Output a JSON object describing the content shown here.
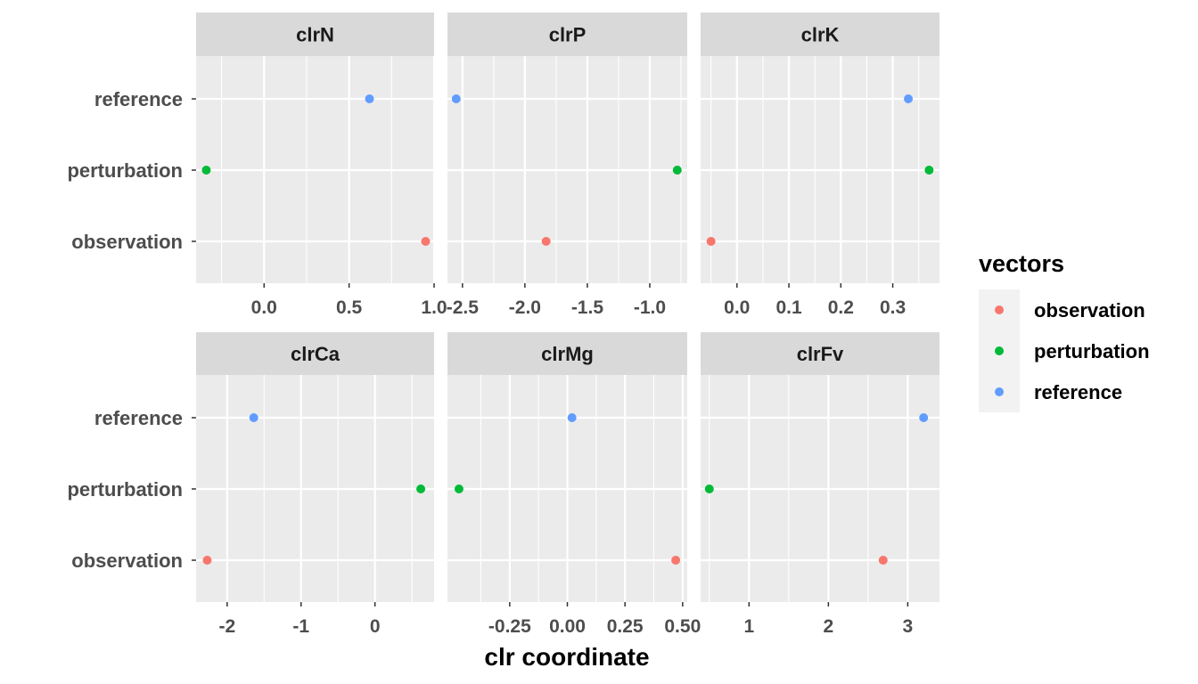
{
  "chart_data": {
    "type": "scatter",
    "xlabel": "clr coordinate",
    "legend": {
      "title": "vectors",
      "position": "right",
      "entries": [
        "observation",
        "perturbation",
        "reference"
      ]
    },
    "colors": {
      "observation": "#F8766D",
      "perturbation": "#00BA38",
      "reference": "#619CFF",
      "panel_bg": "#EBEBEB",
      "strip_bg": "#D9D9D9",
      "grid": "#FFFFFF"
    },
    "categories": [
      "observation",
      "perturbation",
      "reference"
    ],
    "grid": true,
    "facets": [
      {
        "title": "clrN",
        "xlim": [
          -0.4,
          1.0
        ],
        "ticks": [
          {
            "v": 0.0,
            "l": "0.0"
          },
          {
            "v": 0.5,
            "l": "0.5"
          },
          {
            "v": 1.0,
            "l": "1.0"
          }
        ],
        "points": {
          "observation": 0.95,
          "perturbation": -0.34,
          "reference": 0.62
        }
      },
      {
        "title": "clrP",
        "xlim": [
          -2.62,
          -0.7
        ],
        "ticks": [
          {
            "v": -2.5,
            "l": "-2.5"
          },
          {
            "v": -2.0,
            "l": "-2.0"
          },
          {
            "v": -1.5,
            "l": "-1.5"
          },
          {
            "v": -1.0,
            "l": "-1.0"
          }
        ],
        "points": {
          "observation": -1.83,
          "perturbation": -0.78,
          "reference": -2.55
        }
      },
      {
        "title": "clrK",
        "xlim": [
          -0.07,
          0.39
        ],
        "ticks": [
          {
            "v": 0.0,
            "l": "0.0"
          },
          {
            "v": 0.1,
            "l": "0.1"
          },
          {
            "v": 0.2,
            "l": "0.2"
          },
          {
            "v": 0.3,
            "l": "0.3"
          }
        ],
        "points": {
          "observation": -0.05,
          "perturbation": 0.37,
          "reference": 0.33
        }
      },
      {
        "title": "clrCa",
        "xlim": [
          -2.42,
          0.8
        ],
        "ticks": [
          {
            "v": -2,
            "l": "-2"
          },
          {
            "v": -1,
            "l": "-1"
          },
          {
            "v": 0,
            "l": "0"
          }
        ],
        "points": {
          "observation": -2.27,
          "perturbation": 0.62,
          "reference": -1.64
        }
      },
      {
        "title": "clrMg",
        "xlim": [
          -0.52,
          0.52
        ],
        "ticks": [
          {
            "v": -0.25,
            "l": "-0.25"
          },
          {
            "v": 0.0,
            "l": "0.00"
          },
          {
            "v": 0.25,
            "l": "0.25"
          },
          {
            "v": 0.5,
            "l": "0.50"
          }
        ],
        "points": {
          "observation": 0.47,
          "perturbation": -0.47,
          "reference": 0.02
        }
      },
      {
        "title": "clrFv",
        "xlim": [
          0.39,
          3.4
        ],
        "ticks": [
          {
            "v": 1,
            "l": "1"
          },
          {
            "v": 2,
            "l": "2"
          },
          {
            "v": 3,
            "l": "3"
          }
        ],
        "points": {
          "observation": 2.69,
          "perturbation": 0.5,
          "reference": 3.2
        }
      }
    ]
  }
}
